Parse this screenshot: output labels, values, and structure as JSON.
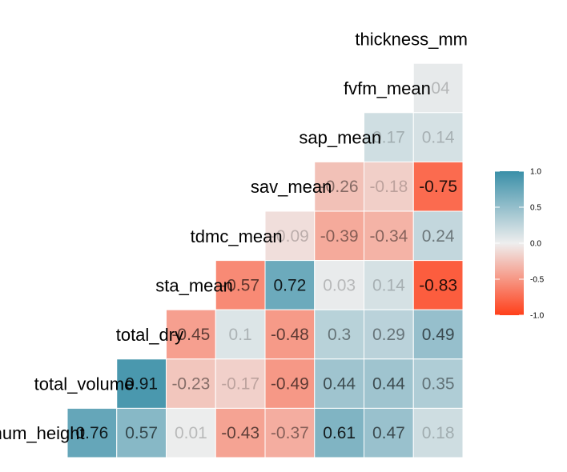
{
  "chart_data": {
    "type": "heatmap",
    "variables": [
      "thickness_mm",
      "fvfm_mean",
      "sap_mean",
      "sav_mean",
      "tdmc_mean",
      "sta_mean",
      "total_dry",
      "total_volume",
      "maximum_height"
    ],
    "visible_labels": [
      "thickness_mm",
      "fvfm_mean",
      "sap_mean",
      "sav_mean",
      "tdmc_mean",
      "sta_mean",
      "total_dry",
      "total_volume",
      "mum_height"
    ],
    "rows": [
      {
        "variable": "fvfm_mean",
        "values": [
          {
            "x": "thickness_mm",
            "v": 0.04,
            "label": ".04"
          }
        ]
      },
      {
        "variable": "sap_mean",
        "values": [
          {
            "x": "fvfm_mean",
            "v": 0.17,
            "label": "0.17"
          },
          {
            "x": "thickness_mm",
            "v": 0.14,
            "label": "0.14"
          }
        ]
      },
      {
        "variable": "sav_mean",
        "values": [
          {
            "x": "sap_mean",
            "v": -0.26,
            "label": "-0.26"
          },
          {
            "x": "fvfm_mean",
            "v": -0.18,
            "label": "-0.18"
          },
          {
            "x": "thickness_mm",
            "v": -0.75,
            "label": "-0.75"
          }
        ]
      },
      {
        "variable": "tdmc_mean",
        "values": [
          {
            "x": "sav_mean",
            "v": -0.09,
            "label": "-0.09"
          },
          {
            "x": "sap_mean",
            "v": -0.39,
            "label": "-0.39"
          },
          {
            "x": "fvfm_mean",
            "v": -0.34,
            "label": "-0.34"
          },
          {
            "x": "thickness_mm",
            "v": 0.24,
            "label": "0.24"
          }
        ]
      },
      {
        "variable": "sta_mean",
        "values": [
          {
            "x": "tdmc_mean",
            "v": -0.57,
            "label": "-0.57"
          },
          {
            "x": "sav_mean",
            "v": 0.72,
            "label": "0.72"
          },
          {
            "x": "sap_mean",
            "v": 0.03,
            "label": "0.03"
          },
          {
            "x": "fvfm_mean",
            "v": 0.14,
            "label": "0.14"
          },
          {
            "x": "thickness_mm",
            "v": -0.83,
            "label": "-0.83"
          }
        ]
      },
      {
        "variable": "total_dry",
        "values": [
          {
            "x": "sta_mean",
            "v": -0.45,
            "label": "-0.45"
          },
          {
            "x": "tdmc_mean",
            "v": 0.1,
            "label": "0.1"
          },
          {
            "x": "sav_mean",
            "v": -0.48,
            "label": "-0.48"
          },
          {
            "x": "sap_mean",
            "v": 0.3,
            "label": "0.3"
          },
          {
            "x": "fvfm_mean",
            "v": 0.29,
            "label": "0.29"
          },
          {
            "x": "thickness_mm",
            "v": 0.49,
            "label": "0.49"
          }
        ]
      },
      {
        "variable": "total_volume",
        "values": [
          {
            "x": "total_dry",
            "v": 0.91,
            "label": "0.91"
          },
          {
            "x": "sta_mean",
            "v": -0.23,
            "label": "-0.23"
          },
          {
            "x": "tdmc_mean",
            "v": -0.17,
            "label": "-0.17"
          },
          {
            "x": "sav_mean",
            "v": -0.49,
            "label": "-0.49"
          },
          {
            "x": "sap_mean",
            "v": 0.44,
            "label": "0.44"
          },
          {
            "x": "fvfm_mean",
            "v": 0.44,
            "label": "0.44"
          },
          {
            "x": "thickness_mm",
            "v": 0.35,
            "label": "0.35"
          }
        ]
      },
      {
        "variable": "maximum_height",
        "values": [
          {
            "x": "total_volume",
            "v": 0.76,
            "label": "0.76"
          },
          {
            "x": "total_dry",
            "v": 0.57,
            "label": "0.57"
          },
          {
            "x": "sta_mean",
            "v": 0.01,
            "label": "0.01"
          },
          {
            "x": "tdmc_mean",
            "v": -0.43,
            "label": "-0.43"
          },
          {
            "x": "sav_mean",
            "v": -0.37,
            "label": "-0.37"
          },
          {
            "x": "sap_mean",
            "v": 0.61,
            "label": "0.61"
          },
          {
            "x": "fvfm_mean",
            "v": 0.47,
            "label": "0.47"
          },
          {
            "x": "thickness_mm",
            "v": 0.18,
            "label": "0.18"
          }
        ]
      }
    ],
    "legend": {
      "position": "right",
      "ticks": [
        "1.0",
        "0.5",
        "0.0",
        "-0.5",
        "-1.0"
      ],
      "range": [
        -1,
        1
      ]
    },
    "colors": {
      "high": "#3A8FA8",
      "mid": "#EEEEEE",
      "low": "#FF3F1A"
    },
    "title": "",
    "xlabel": "",
    "ylabel": "",
    "grid": false
  }
}
